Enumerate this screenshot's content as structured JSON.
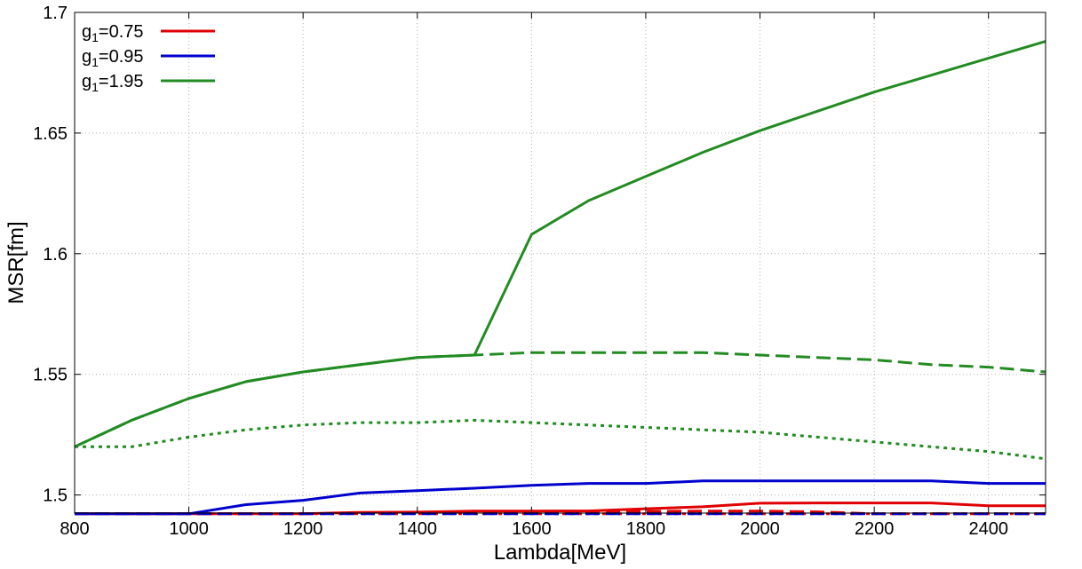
{
  "chart_data": {
    "type": "line",
    "title": "",
    "xlabel": "Lambda[MeV]",
    "ylabel": "MSR[fm]",
    "xlim": [
      800,
      2500
    ],
    "ylim": [
      1.4925,
      1.7
    ],
    "grid": true,
    "legend_position": "top-left",
    "x_ticks": [
      800,
      1000,
      1200,
      1400,
      1600,
      1800,
      2000,
      2200,
      2400
    ],
    "x_tick_labels": [
      "800",
      "1000",
      "1200",
      "1400",
      "1600",
      "1800",
      "2000",
      "2200",
      "2400"
    ],
    "y_ticks": [
      1.5,
      1.55,
      1.6,
      1.65,
      1.7
    ],
    "y_tick_labels": [
      "1.5",
      "1.55",
      "1.6",
      "1.65",
      "1.7"
    ],
    "legend": [
      {
        "base": "g",
        "sub": "1",
        "text": "=0.75",
        "color": "#e00000"
      },
      {
        "base": "g",
        "sub": "1",
        "text": "=0.95",
        "color": "#0000cc"
      },
      {
        "base": "g",
        "sub": "1",
        "text": "=1.95",
        "color": "#228b22"
      }
    ],
    "series": [
      {
        "color": "#e00000",
        "dash": "solid",
        "x": [
          800,
          900,
          1000,
          1100,
          1200,
          1300,
          1400,
          1500,
          1600,
          1700,
          1800,
          1900,
          2000,
          2100,
          2200,
          2300,
          2400,
          2500
        ],
        "y": [
          1.4922,
          1.4922,
          1.4922,
          1.4922,
          1.4922,
          1.4928,
          1.4929,
          1.4933,
          1.4933,
          1.4934,
          1.4943,
          1.4951,
          1.4966,
          1.4967,
          1.4967,
          1.4967,
          1.4955,
          1.4955
        ]
      },
      {
        "color": "#e00000",
        "dash": "dashed",
        "x": [
          800,
          900,
          1000,
          1100,
          1200,
          1300,
          1400,
          1500,
          1600,
          1700,
          1800,
          1900,
          2000,
          2100,
          2200,
          2300,
          2400,
          2500
        ],
        "y": [
          1.4922,
          1.4922,
          1.4922,
          1.4922,
          1.4922,
          1.4925,
          1.4926,
          1.4928,
          1.4928,
          1.4929,
          1.4932,
          1.4933,
          1.4933,
          1.493,
          1.4922,
          1.4922,
          1.4922,
          1.4922
        ]
      },
      {
        "color": "#e00000",
        "dash": "dotted",
        "x": [
          800,
          1000,
          1200,
          1400,
          1600,
          1800,
          2000,
          2200,
          2400,
          2500
        ],
        "y": [
          1.4922,
          1.4922,
          1.4922,
          1.4922,
          1.4922,
          1.4922,
          1.4922,
          1.4922,
          1.4922,
          1.4922
        ]
      },
      {
        "color": "#0000cc",
        "dash": "solid",
        "x": [
          800,
          900,
          1000,
          1100,
          1200,
          1300,
          1400,
          1500,
          1600,
          1700,
          1800,
          1900,
          2000,
          2100,
          2200,
          2300,
          2400,
          2500
        ],
        "y": [
          1.4922,
          1.4922,
          1.4922,
          1.496,
          1.4978,
          1.5008,
          1.5018,
          1.5028,
          1.504,
          1.5048,
          1.5048,
          1.5058,
          1.5058,
          1.5058,
          1.5058,
          1.5058,
          1.5048,
          1.5048
        ]
      },
      {
        "color": "#0000cc",
        "dash": "dashed",
        "x": [
          800,
          1000,
          1200,
          1400,
          1600,
          1800,
          2000,
          2200,
          2400,
          2500
        ],
        "y": [
          1.4922,
          1.4922,
          1.4922,
          1.4922,
          1.4922,
          1.4922,
          1.4922,
          1.4922,
          1.4922,
          1.4922
        ]
      },
      {
        "color": "#228b22",
        "dash": "solid",
        "x": [
          800,
          900,
          1000,
          1100,
          1200,
          1300,
          1400,
          1500,
          1600,
          1700,
          1800,
          1900,
          2000,
          2100,
          2200,
          2300,
          2400,
          2500
        ],
        "y": [
          1.52,
          1.531,
          1.54,
          1.547,
          1.551,
          1.554,
          1.557,
          1.558,
          1.608,
          1.622,
          1.632,
          1.642,
          1.651,
          1.659,
          1.667,
          1.674,
          1.681,
          1.688
        ]
      },
      {
        "color": "#228b22",
        "dash": "dashed",
        "x": [
          800,
          900,
          1000,
          1100,
          1200,
          1300,
          1400,
          1500,
          1600,
          1700,
          1800,
          1900,
          2000,
          2100,
          2200,
          2300,
          2400,
          2500
        ],
        "y": [
          1.52,
          1.531,
          1.54,
          1.547,
          1.551,
          1.554,
          1.557,
          1.558,
          1.559,
          1.559,
          1.559,
          1.559,
          1.558,
          1.557,
          1.556,
          1.554,
          1.553,
          1.551
        ]
      },
      {
        "color": "#228b22",
        "dash": "dotted",
        "x": [
          800,
          900,
          1000,
          1100,
          1200,
          1300,
          1400,
          1500,
          1600,
          1700,
          1800,
          1900,
          2000,
          2100,
          2200,
          2300,
          2400,
          2500
        ],
        "y": [
          1.52,
          1.52,
          1.524,
          1.527,
          1.529,
          1.53,
          1.53,
          1.531,
          1.53,
          1.529,
          1.528,
          1.527,
          1.526,
          1.524,
          1.522,
          1.52,
          1.518,
          1.515
        ]
      }
    ]
  }
}
